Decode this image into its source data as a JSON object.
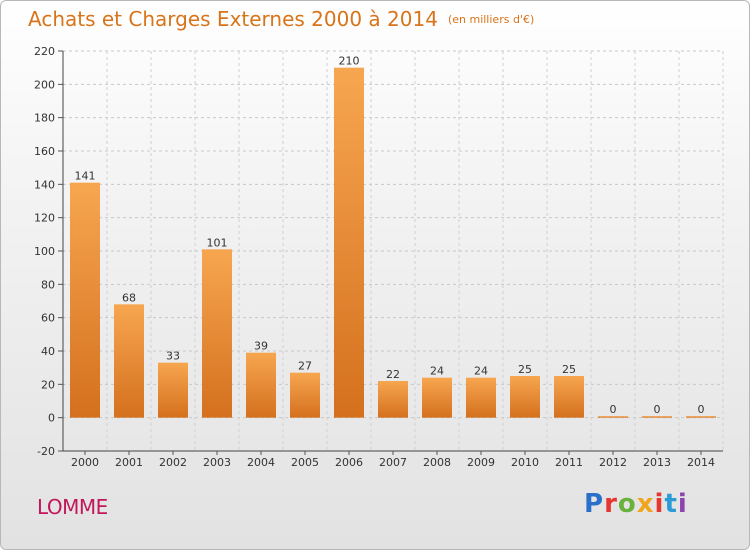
{
  "title": "Achats et Charges Externes 2000 à 2014",
  "subtitle": "(en milliers d'€)",
  "city": "LOMME",
  "logo": {
    "letters": [
      "P",
      "r",
      "o",
      "x",
      "i",
      "t",
      "i"
    ],
    "colors": [
      "#2a6fc9",
      "#e7362f",
      "#6ab23e",
      "#f2a51a",
      "#e7362f",
      "#2a9bd6",
      "#8e44ad"
    ]
  },
  "colors": {
    "bar_light": "#f7a650",
    "bar_dark": "#d4701e",
    "accent": "#d8741a",
    "city": "#c2185b"
  },
  "chart_data": {
    "type": "bar",
    "categories": [
      "2000",
      "2001",
      "2002",
      "2003",
      "2004",
      "2005",
      "2006",
      "2007",
      "2008",
      "2009",
      "2010",
      "2011",
      "2012",
      "2013",
      "2014"
    ],
    "values": [
      141,
      68,
      33,
      101,
      39,
      27,
      210,
      22,
      24,
      24,
      25,
      25,
      0,
      0,
      0
    ],
    "value_labels": [
      "141",
      "68",
      "33",
      "101",
      "39",
      "27",
      "210",
      "22",
      "24",
      "24",
      "25",
      "25",
      "0",
      "0",
      "0"
    ],
    "y_ticks": [
      -20,
      0,
      20,
      40,
      60,
      80,
      100,
      120,
      140,
      160,
      180,
      200,
      220
    ],
    "ylim": [
      -20,
      220
    ],
    "grid": true
  }
}
